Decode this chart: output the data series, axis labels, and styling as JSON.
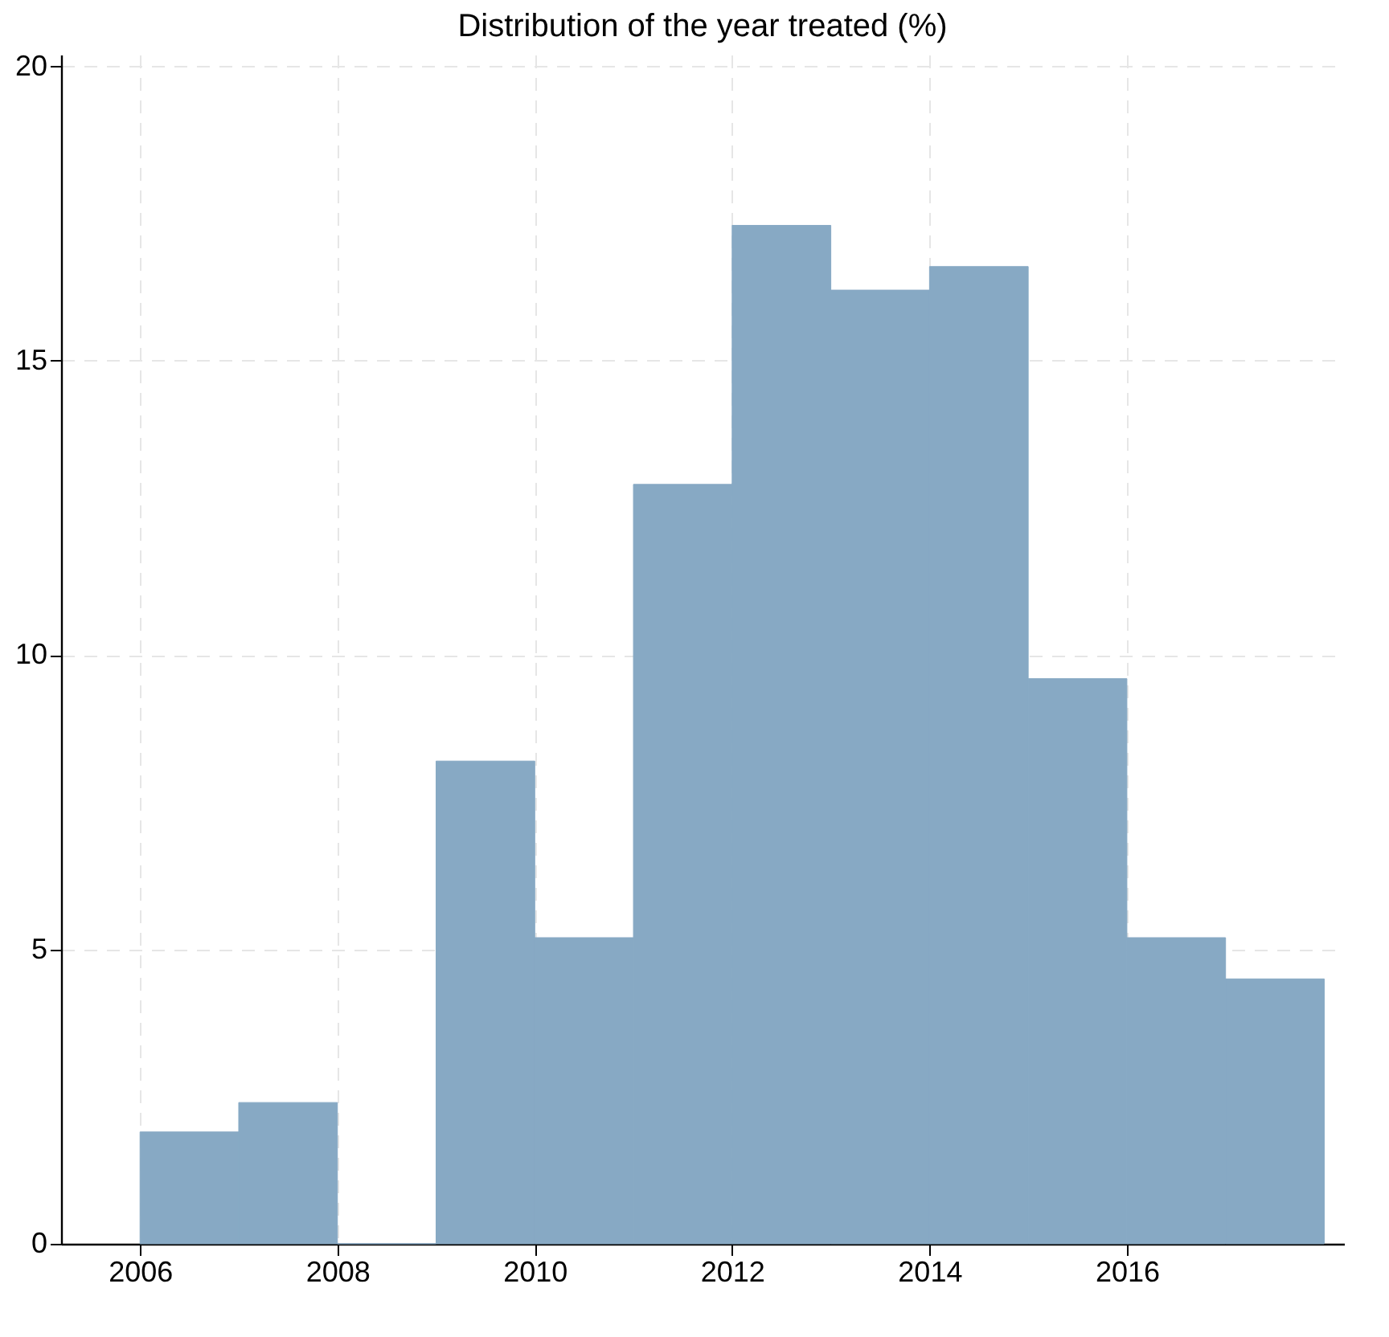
{
  "chart_data": {
    "type": "histogram",
    "title": "Distribution of the year treated (%)",
    "bins": [
      2006,
      2007,
      2008,
      2009,
      2010,
      2011,
      2012,
      2013,
      2014,
      2015,
      2016,
      2017,
      2018
    ],
    "values": [
      1.9,
      2.4,
      0,
      8.2,
      5.2,
      12.9,
      17.3,
      16.2,
      16.6,
      9.6,
      5.2,
      4.5
    ],
    "color": "#87a9c4",
    "xlim": [
      2005.2,
      2018.2
    ],
    "xticks": [
      2006,
      2008,
      2010,
      2012,
      2014,
      2016
    ],
    "ylim": [
      0,
      20.2
    ],
    "yticks": [
      0,
      5,
      10,
      15,
      20
    ],
    "grid": true
  }
}
